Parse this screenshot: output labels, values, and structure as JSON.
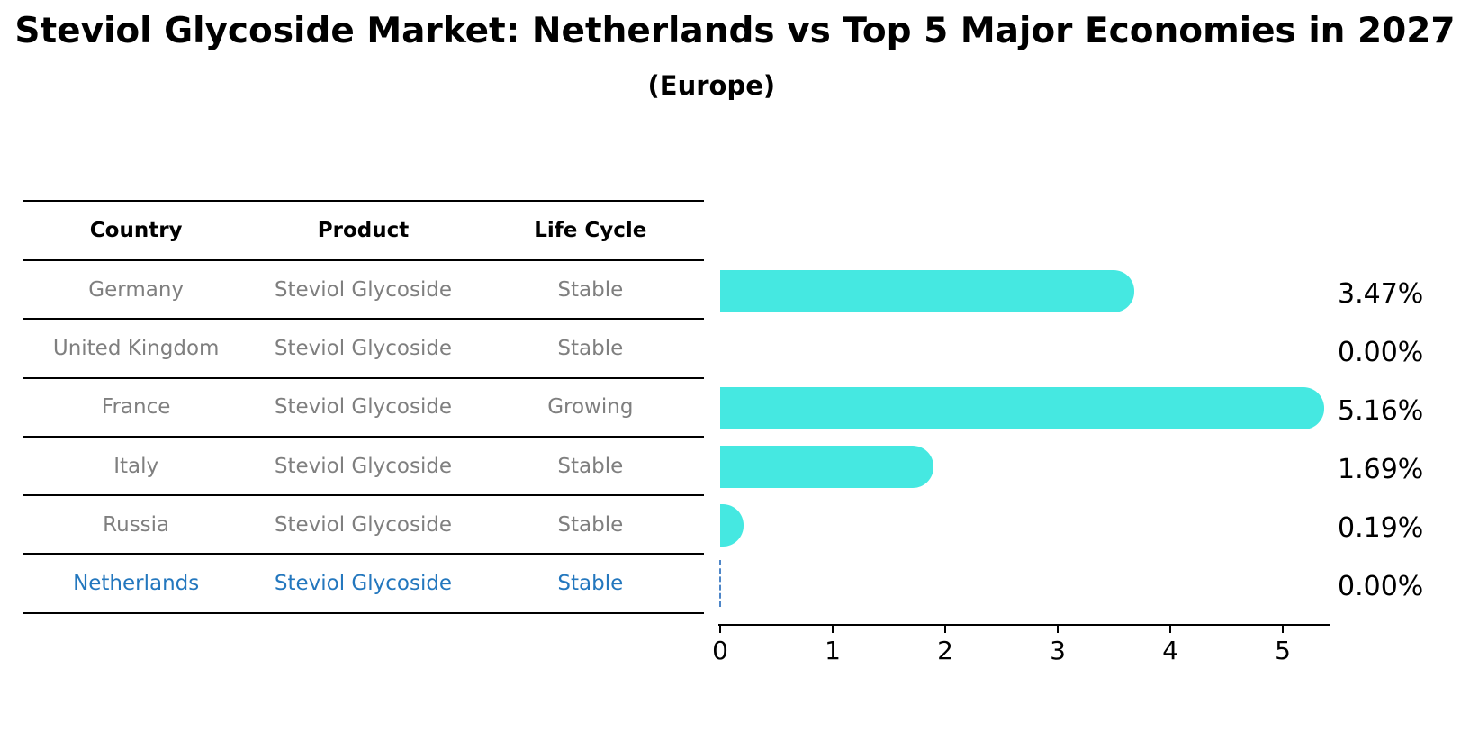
{
  "title": "Steviol Glycoside Market: Netherlands vs Top 5 Major Economies in 2027",
  "subtitle": "(Europe)",
  "table": {
    "headers": [
      "Country",
      "Product",
      "Life Cycle"
    ],
    "rows": [
      {
        "country": "Germany",
        "product": "Steviol Glycoside",
        "life_cycle": "Stable",
        "highlight": false
      },
      {
        "country": "United Kingdom",
        "product": "Steviol Glycoside",
        "life_cycle": "Stable",
        "highlight": false
      },
      {
        "country": "France",
        "product": "Steviol Glycoside",
        "life_cycle": "Growing",
        "highlight": false
      },
      {
        "country": "Italy",
        "product": "Steviol Glycoside",
        "life_cycle": "Stable",
        "highlight": false
      },
      {
        "country": "Russia",
        "product": "Steviol Glycoside",
        "life_cycle": "Stable",
        "highlight": true
      }
    ],
    "highlight_row": {
      "country": "Netherlands",
      "product": "Steviol Glycoside",
      "life_cycle": "Stable"
    }
  },
  "chart_data": {
    "type": "bar",
    "orientation": "horizontal",
    "categories": [
      "Germany",
      "United Kingdom",
      "France",
      "Italy",
      "Russia",
      "Netherlands"
    ],
    "values": [
      3.47,
      0.0,
      5.16,
      1.69,
      0.19,
      0.0
    ],
    "value_labels": [
      "3.47%",
      "0.00%",
      "5.16%",
      "1.69%",
      "0.19%",
      "0.00%"
    ],
    "x_ticks": [
      0,
      1,
      2,
      3,
      4,
      5
    ],
    "x_tick_labels": [
      "0",
      "1",
      "2",
      "3",
      "4",
      "5"
    ],
    "xlim": [
      0,
      5.42
    ],
    "grid": false,
    "legend": false,
    "highlight_index": 5,
    "bar_color": "#45e8e1",
    "highlight_line_color": "#4e86c8"
  },
  "colors": {
    "background": "#ffffff",
    "text": "#000000",
    "muted_text": "#7f7f7f",
    "highlight_text": "#2377be",
    "bar": "#45e8e1"
  }
}
